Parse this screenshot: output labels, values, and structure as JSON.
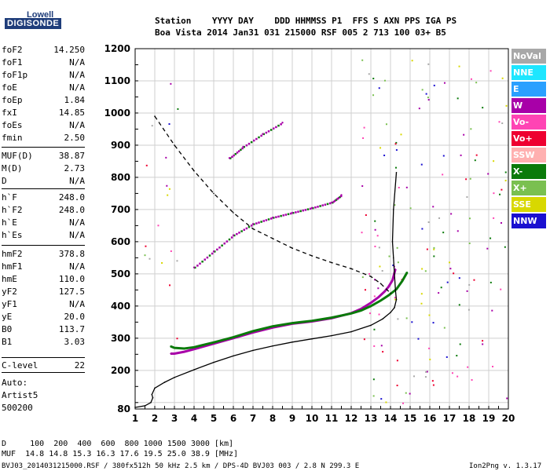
{
  "logo": {
    "line1": "Lowell",
    "line2": "DIGISONDE"
  },
  "header": {
    "line1": "Station    YYYY DAY    DDD HHMMSS P1  FFS S AXN PPS IGA PS",
    "line2": "Boa Vista 2014 Jan31 031 215000 RSF 005 2 713 100 03+ B5"
  },
  "params": [
    {
      "label": "foF2",
      "value": "14.250"
    },
    {
      "label": "foF1",
      "value": "N/A"
    },
    {
      "label": "foF1p",
      "value": "N/A"
    },
    {
      "label": "foE",
      "value": "N/A"
    },
    {
      "label": "foEp",
      "value": "1.84"
    },
    {
      "label": "fxI",
      "value": "14.85"
    },
    {
      "label": "foEs",
      "value": "N/A"
    },
    {
      "label": "fmin",
      "value": "2.50"
    },
    {
      "label": "MUF(D)",
      "value": "38.87"
    },
    {
      "label": "M(D)",
      "value": "2.73"
    },
    {
      "label": "D",
      "value": "N/A"
    },
    {
      "label": "h`F",
      "value": "248.0"
    },
    {
      "label": "h`F2",
      "value": "248.0"
    },
    {
      "label": "h`E",
      "value": "N/A"
    },
    {
      "label": "h`Es",
      "value": "N/A"
    },
    {
      "label": "hmF2",
      "value": "378.8"
    },
    {
      "label": "hmF1",
      "value": "N/A"
    },
    {
      "label": "hmE",
      "value": "110.0"
    },
    {
      "label": "yF2",
      "value": "127.5"
    },
    {
      "label": "yF1",
      "value": "N/A"
    },
    {
      "label": "yE",
      "value": "20.0"
    },
    {
      "label": "B0",
      "value": "113.7"
    },
    {
      "label": "B1",
      "value": "3.03"
    },
    {
      "label": "C-level",
      "value": "22"
    }
  ],
  "auto": {
    "line1": "Auto:",
    "line2": "Artist5",
    "line3": "500200"
  },
  "legend": [
    {
      "label": "NoVal",
      "color": "#a8a8a8"
    },
    {
      "label": "NNE",
      "color": "#1ee6ff"
    },
    {
      "label": "E",
      "color": "#2aa0ff"
    },
    {
      "label": "W",
      "color": "#a800a8"
    },
    {
      "label": "Vo-",
      "color": "#ff44b4"
    },
    {
      "label": "Vo+",
      "color": "#ee0030"
    },
    {
      "label": "SSW",
      "color": "#ffb0b0"
    },
    {
      "label": "X-",
      "color": "#0a7a0a"
    },
    {
      "label": "X+",
      "color": "#7ac050"
    },
    {
      "label": "SSE",
      "color": "#d8d800"
    },
    {
      "label": "NNW",
      "color": "#1a10d0"
    }
  ],
  "footer": {
    "d_row": "D     100  200  400  600  800 1000 1500 3000 [km]",
    "muf_row": "MUF  14.8 14.8 15.3 16.3 17.6 19.5 25.0 38.9 [MHz]",
    "info": "BVJ03_2014031215000.RSF / 380fx512h 50 kHz 2.5 km / DPS-4D BVJ03 003 / 2.8 N 299.3 E",
    "version": "Ion2Png v. 1.3.17"
  },
  "chart_data": {
    "type": "scatter",
    "xlim": [
      1,
      20
    ],
    "ylim": [
      80,
      1200
    ],
    "x_ticks": [
      "1",
      "2",
      "3",
      "4",
      "5",
      "6",
      "7",
      "8",
      "9",
      "10",
      "11",
      "12",
      "13",
      "14",
      "15",
      "16",
      "17",
      "18",
      "19",
      "20"
    ],
    "y_ticks": [
      "80",
      "100",
      "200",
      "300",
      "400",
      "500",
      "600",
      "700",
      "800",
      "900",
      "1000",
      "1100",
      "1200"
    ],
    "x_tick_values": [
      1,
      2,
      3,
      4,
      5,
      6,
      7,
      8,
      9,
      10,
      11,
      12,
      13,
      14,
      15,
      16,
      17,
      18,
      19,
      20
    ],
    "y_tick_values": [
      80,
      100,
      200,
      300,
      400,
      500,
      600,
      700,
      800,
      900,
      1000,
      1100,
      1200
    ],
    "xlabel": "",
    "ylabel": "",
    "grid": true,
    "series": [
      {
        "role": "trace_o",
        "style": "solid",
        "color": "#a800a8",
        "x": [
          2.8,
          3.0,
          3.5,
          4.0,
          5.0,
          6.0,
          7.0,
          8.0,
          9.0,
          10.0,
          11.0,
          12.0,
          12.5,
          13.0,
          13.4,
          13.7,
          13.9,
          14.1,
          14.25
        ],
        "y": [
          252,
          252,
          258,
          266,
          283,
          300,
          318,
          333,
          345,
          352,
          362,
          378,
          391,
          410,
          428,
          445,
          460,
          480,
          515
        ]
      },
      {
        "role": "trace_x",
        "style": "solid",
        "color": "#0a7a0a",
        "x": [
          2.8,
          3.0,
          3.5,
          4.0,
          5.0,
          6.0,
          7.0,
          8.0,
          9.0,
          10.0,
          11.0,
          12.0,
          12.5,
          13.0,
          13.5,
          13.9,
          14.3,
          14.6,
          14.85
        ],
        "y": [
          275,
          270,
          268,
          272,
          287,
          303,
          322,
          337,
          347,
          354,
          364,
          377,
          386,
          400,
          417,
          433,
          452,
          478,
          505
        ]
      },
      {
        "role": "multi_hop",
        "style": "dots",
        "color": "#a800a8",
        "x": [
          4.0,
          5.0,
          6.0,
          7.0,
          8.0,
          9.0,
          10.0,
          11.0,
          11.5
        ],
        "y": [
          520,
          570,
          620,
          655,
          675,
          690,
          705,
          722,
          745
        ]
      },
      {
        "role": "multi_hop_2",
        "style": "dots",
        "color": "#a800a8",
        "x": [
          5.8,
          6.5,
          7.5,
          8.5
        ],
        "y": [
          860,
          895,
          935,
          970
        ]
      },
      {
        "role": "profile",
        "style": "solid",
        "color": "#000000",
        "x": [
          1.0,
          1.5,
          1.8,
          1.9,
          1.85,
          2.0,
          2.5,
          3.0,
          4.0,
          5.0,
          6.0,
          7.0,
          8.0,
          9.0,
          10.0,
          11.0,
          12.0,
          13.0,
          13.6,
          14.0,
          14.2,
          14.3,
          14.25,
          14.2,
          14.15,
          14.1,
          14.15,
          14.3
        ],
        "y": [
          85,
          90,
          100,
          115,
          125,
          145,
          163,
          178,
          202,
          225,
          245,
          262,
          276,
          288,
          298,
          308,
          320,
          340,
          360,
          380,
          395,
          420,
          450,
          500,
          550,
          600,
          700,
          815
        ]
      },
      {
        "role": "profile_dashed",
        "style": "dashed",
        "color": "#000000",
        "x": [
          2.0,
          3.0,
          4.0,
          5.0,
          6.0,
          7.0,
          8.0,
          9.0,
          10.0,
          11.0,
          12.0,
          13.0,
          13.5,
          14.0
        ],
        "y": [
          990,
          900,
          820,
          750,
          690,
          640,
          610,
          580,
          556,
          535,
          516,
          492,
          470,
          440
        ]
      }
    ]
  }
}
